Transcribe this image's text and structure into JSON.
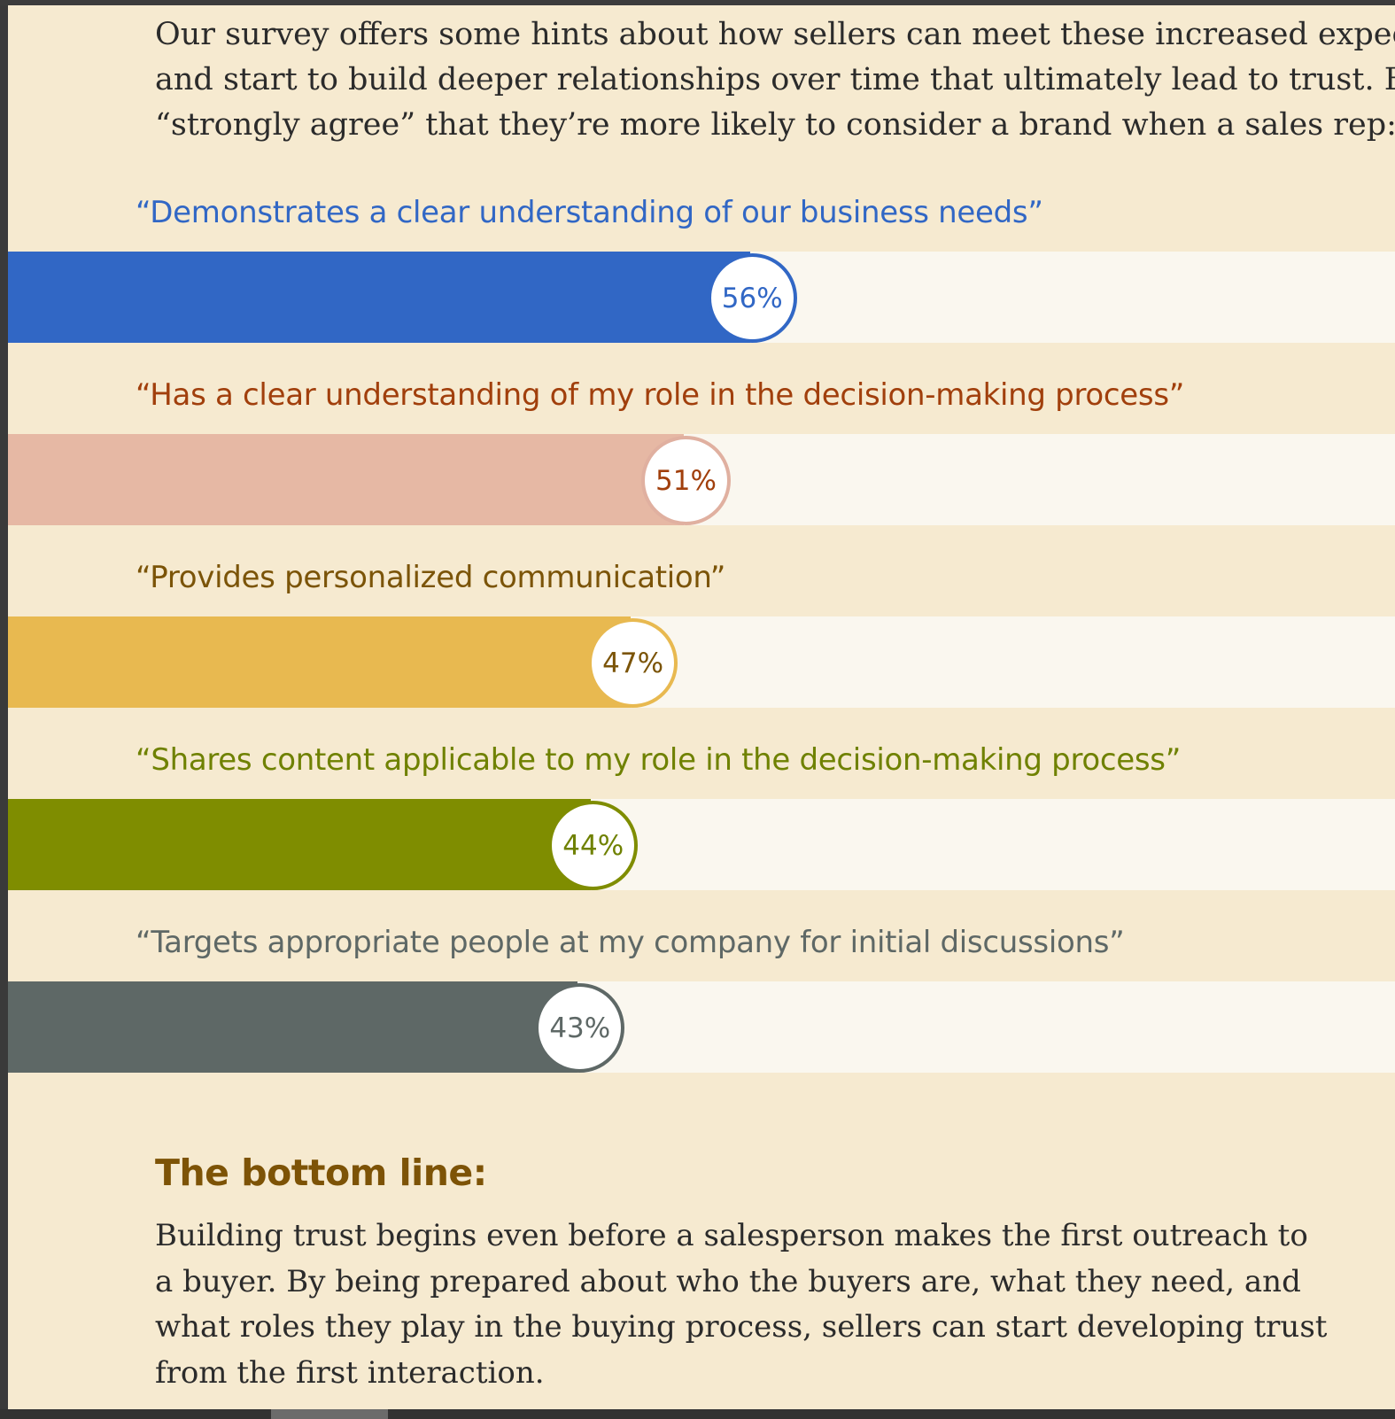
{
  "intro": {
    "lines": [
      "Our survey offers some hints about how sellers can meet these increased expectat",
      "and start to build deeper relationships over time that ultimately lead to trust. Buye",
      "“strongly agree” that they’re more likely to consider a brand when a sales rep:"
    ]
  },
  "chart_data": {
    "type": "bar",
    "orientation": "horizontal",
    "xlim": [
      0,
      100
    ],
    "categories": [
      "“Demonstrates a clear understanding of our business needs”",
      "“Has a clear understanding of my role in the decision-making process”",
      "“Provides personalized communication”",
      "“Shares content applicable to my role in the decision-making process”",
      "“Targets appropriate people at my company for initial discussions”"
    ],
    "values": [
      56,
      51,
      47,
      44,
      43
    ],
    "data_labels": [
      "56%",
      "51%",
      "47%",
      "44%",
      "43%"
    ],
    "colors": {
      "bars": [
        "#3167c5",
        "#e6b8a4",
        "#e8b950",
        "#7f8d00",
        "#5e6866"
      ],
      "labels": [
        "#3167c5",
        "#a13f0c",
        "#7b5408",
        "#6f8100",
        "#5e6866"
      ],
      "badge_borders": [
        "#3167c5",
        "#e0b0a0",
        "#e8b950",
        "#7f8d00",
        "#5e6866"
      ]
    }
  },
  "bottom_line": {
    "title": "The bottom line:",
    "lines": [
      "Building trust begins even before a salesperson makes the first outreach to",
      "a buyer. By being prepared about who the buyers are, what they need, and",
      "what roles they play in the buying process, sellers can start developing trust",
      "from the first interaction."
    ]
  }
}
